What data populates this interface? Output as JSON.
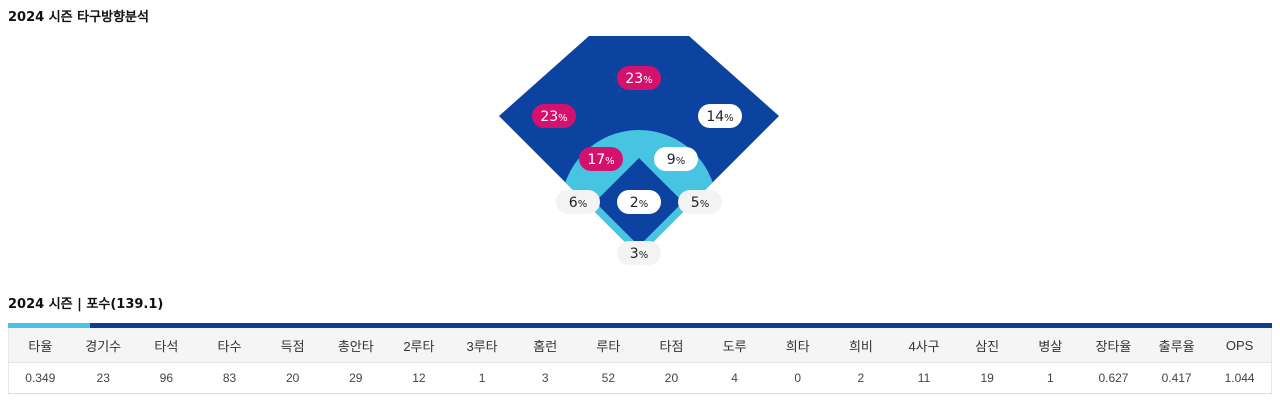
{
  "section1": {
    "title": "2024 시즌 타구방향분석"
  },
  "spray": {
    "percent_sign": "%",
    "zones": [
      {
        "id": "outfield-center",
        "value": "23",
        "highlight": true
      },
      {
        "id": "outfield-left",
        "value": "23",
        "highlight": true
      },
      {
        "id": "outfield-right",
        "value": "14",
        "highlight": false
      },
      {
        "id": "infield-left",
        "value": "17",
        "highlight": true
      },
      {
        "id": "infield-right",
        "value": "9",
        "highlight": false
      },
      {
        "id": "infield-center",
        "value": "2",
        "highlight": false
      },
      {
        "id": "foul-left",
        "value": "6",
        "highlight": false
      },
      {
        "id": "foul-right",
        "value": "5",
        "highlight": false
      },
      {
        "id": "foul-back",
        "value": "3",
        "highlight": false
      }
    ],
    "colors": {
      "outfield": "#0c42a0",
      "infield": "#48c4e3",
      "highlight": "#d4126e",
      "normal_bubble": "#ffffff",
      "foul_bubble": "#f3f3f3"
    }
  },
  "section2": {
    "title": "2024 시즌 | 포수(139.1)"
  },
  "stats": {
    "headers": [
      "타율",
      "경기수",
      "타석",
      "타수",
      "득점",
      "총안타",
      "2루타",
      "3루타",
      "홈런",
      "루타",
      "타점",
      "도루",
      "희타",
      "희비",
      "4사구",
      "삼진",
      "병살",
      "장타율",
      "출루율",
      "OPS"
    ],
    "values": [
      "0.349",
      "23",
      "96",
      "83",
      "20",
      "29",
      "12",
      "1",
      "3",
      "52",
      "20",
      "4",
      "0",
      "2",
      "11",
      "19",
      "1",
      "0.627",
      "0.417",
      "1.044"
    ]
  }
}
